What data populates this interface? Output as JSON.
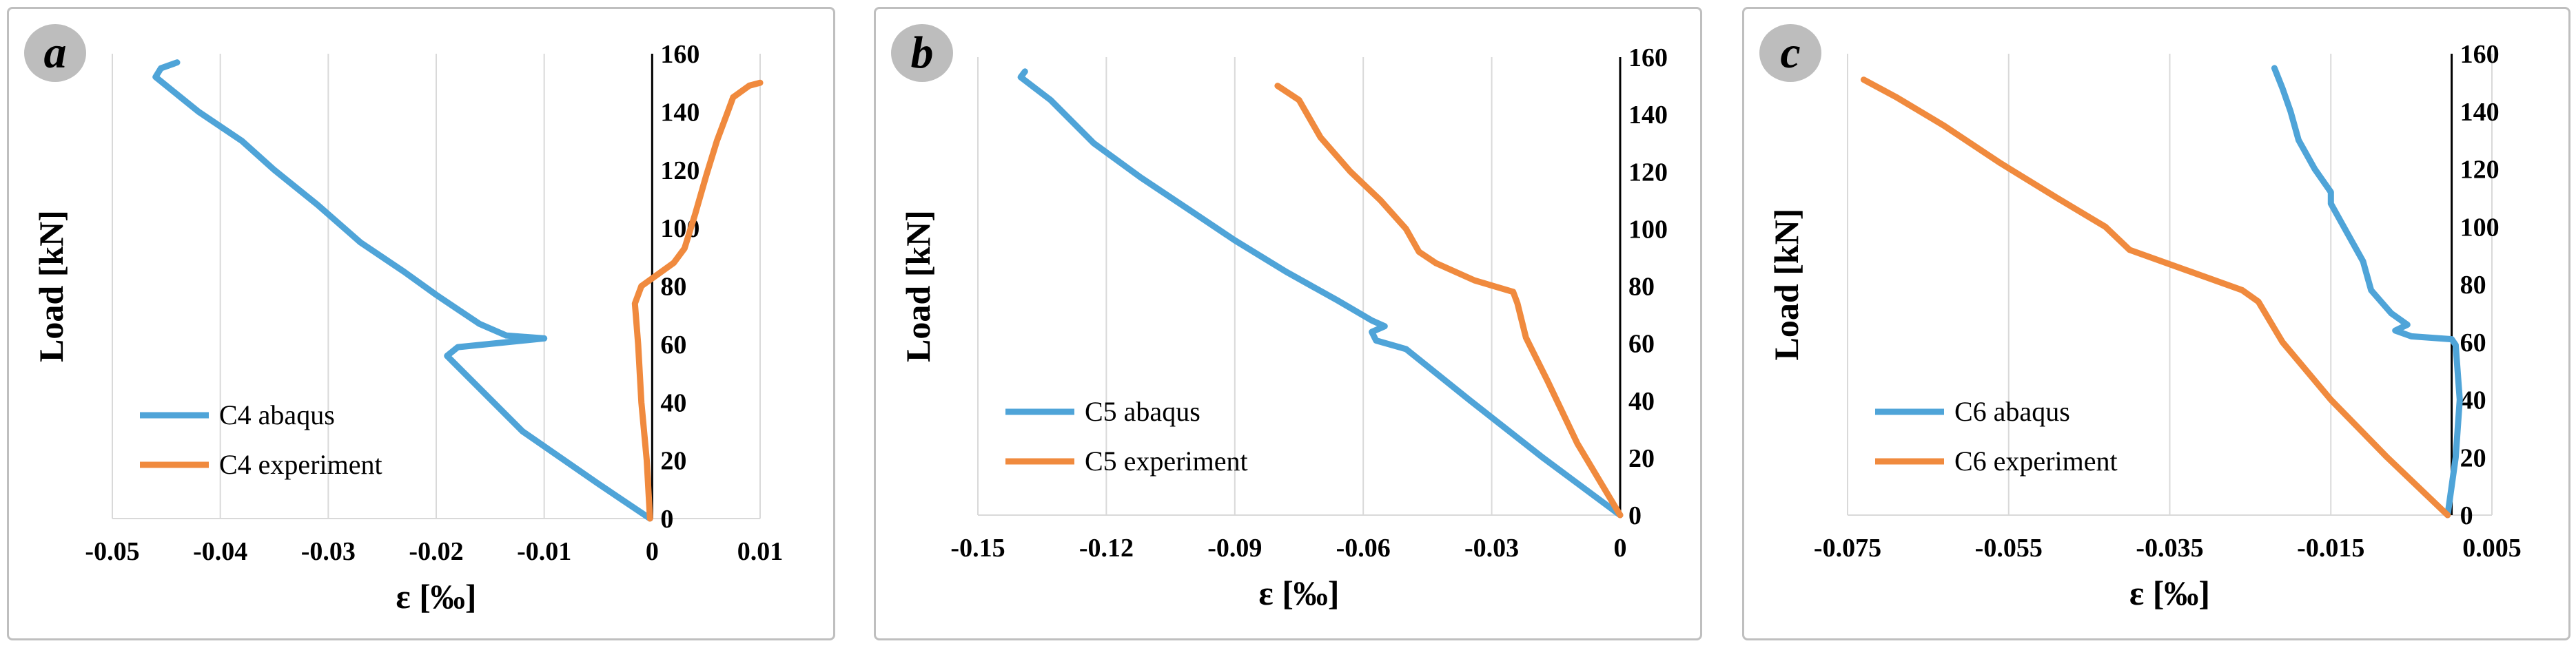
{
  "colors": {
    "abaqus": "#4FA4D8",
    "experiment": "#F08A3E"
  },
  "chart_data": [
    {
      "type": "line",
      "panel_label": "a",
      "ylabel": "Load  [kN]",
      "xlabel": "ε [‰]",
      "xlim": [
        -0.05,
        0.01
      ],
      "ylim": [
        0,
        160
      ],
      "xticks": [
        -0.05,
        -0.04,
        -0.03,
        -0.02,
        -0.01,
        0,
        0.01
      ],
      "xtick_labels": [
        "-0.05",
        "-0.04",
        "-0.03",
        "-0.02",
        "-0.01",
        "0",
        "0.01"
      ],
      "yticks": [
        0,
        20,
        40,
        60,
        80,
        100,
        120,
        140,
        160
      ],
      "ytick_labels": [
        "0",
        "20",
        "40",
        "60",
        "80",
        "100",
        "120",
        "140",
        "160"
      ],
      "legend_position": "bottom-left",
      "series": [
        {
          "name": "C4 abaqus",
          "color_key": "abaqus",
          "points": [
            [
              -0.0002,
              0
            ],
            [
              -0.005,
              12
            ],
            [
              -0.012,
              30
            ],
            [
              -0.019,
              56
            ],
            [
              -0.018,
              59
            ],
            [
              -0.01,
              62
            ],
            [
              -0.0135,
              63
            ],
            [
              -0.016,
              67
            ],
            [
              -0.018,
              72
            ],
            [
              -0.02,
              77
            ],
            [
              -0.023,
              85
            ],
            [
              -0.027,
              95
            ],
            [
              -0.031,
              108
            ],
            [
              -0.035,
              120
            ],
            [
              -0.038,
              130
            ],
            [
              -0.042,
              140
            ],
            [
              -0.046,
              152
            ],
            [
              -0.0455,
              155
            ],
            [
              -0.044,
              157
            ]
          ]
        },
        {
          "name": "C4 experiment",
          "color_key": "experiment",
          "points": [
            [
              -0.0002,
              0
            ],
            [
              -0.0005,
              20
            ],
            [
              -0.001,
              40
            ],
            [
              -0.0013,
              60
            ],
            [
              -0.0016,
              74
            ],
            [
              -0.001,
              80
            ],
            [
              0.0005,
              84
            ],
            [
              0.002,
              88
            ],
            [
              0.003,
              93
            ],
            [
              0.004,
              105
            ],
            [
              0.005,
              118
            ],
            [
              0.006,
              130
            ],
            [
              0.007,
              140
            ],
            [
              0.0075,
              145
            ],
            [
              0.009,
              149
            ],
            [
              0.01,
              150
            ]
          ]
        }
      ]
    },
    {
      "type": "line",
      "panel_label": "b",
      "ylabel": "Load  [kN]",
      "xlabel": "ε [‰]",
      "xlim": [
        -0.15,
        0
      ],
      "ylim": [
        0,
        160
      ],
      "xticks": [
        -0.15,
        -0.12,
        -0.09,
        -0.06,
        -0.03,
        0
      ],
      "xtick_labels": [
        "-0.15",
        "-0.12",
        "-0.09",
        "-0.06",
        "-0.03",
        "0"
      ],
      "yticks": [
        0,
        20,
        40,
        60,
        80,
        100,
        120,
        140,
        160
      ],
      "ytick_labels": [
        "0",
        "20",
        "40",
        "60",
        "80",
        "100",
        "120",
        "140",
        "160"
      ],
      "legend_position": "bottom-left",
      "series": [
        {
          "name": "C5 abaqus",
          "color_key": "abaqus",
          "points": [
            [
              0,
              0
            ],
            [
              -0.018,
              20
            ],
            [
              -0.035,
              40
            ],
            [
              -0.05,
              58
            ],
            [
              -0.057,
              61
            ],
            [
              -0.058,
              64
            ],
            [
              -0.055,
              66
            ],
            [
              -0.058,
              68
            ],
            [
              -0.066,
              75
            ],
            [
              -0.078,
              85
            ],
            [
              -0.09,
              96
            ],
            [
              -0.1,
              106
            ],
            [
              -0.112,
              118
            ],
            [
              -0.123,
              130
            ],
            [
              -0.133,
              145
            ],
            [
              -0.14,
              153
            ],
            [
              -0.139,
              155
            ]
          ]
        },
        {
          "name": "C5 experiment",
          "color_key": "experiment",
          "points": [
            [
              0,
              0
            ],
            [
              -0.01,
              25
            ],
            [
              -0.017,
              47
            ],
            [
              -0.022,
              62
            ],
            [
              -0.024,
              74
            ],
            [
              -0.025,
              78
            ],
            [
              -0.034,
              82
            ],
            [
              -0.043,
              88
            ],
            [
              -0.047,
              92
            ],
            [
              -0.05,
              100
            ],
            [
              -0.056,
              110
            ],
            [
              -0.063,
              120
            ],
            [
              -0.07,
              132
            ],
            [
              -0.075,
              145
            ],
            [
              -0.08,
              150
            ]
          ]
        }
      ]
    },
    {
      "type": "line",
      "panel_label": "c",
      "ylabel": "Load  [kN]",
      "xlabel": "ε [‰]",
      "xlim": [
        -0.075,
        0.005
      ],
      "ylim": [
        0,
        160
      ],
      "xticks": [
        -0.075,
        -0.055,
        -0.035,
        -0.015,
        0.005
      ],
      "xtick_labels": [
        "-0.075",
        "-0.055",
        "-0.035",
        "-0.015",
        "0.005"
      ],
      "yticks": [
        0,
        20,
        40,
        60,
        80,
        100,
        120,
        140,
        160
      ],
      "ytick_labels": [
        "0",
        "20",
        "40",
        "60",
        "80",
        "100",
        "120",
        "140",
        "160"
      ],
      "legend_position": "bottom-left",
      "series": [
        {
          "name": "C6 abaqus",
          "color_key": "abaqus",
          "points": [
            [
              -0.0005,
              0
            ],
            [
              0.0005,
              20
            ],
            [
              0.001,
              40
            ],
            [
              0.0005,
              59
            ],
            [
              0,
              61
            ],
            [
              -0.005,
              62
            ],
            [
              -0.007,
              64
            ],
            [
              -0.0055,
              66
            ],
            [
              -0.0075,
              70
            ],
            [
              -0.01,
              78
            ],
            [
              -0.011,
              88
            ],
            [
              -0.013,
              98
            ],
            [
              -0.015,
              108
            ],
            [
              -0.015,
              112
            ],
            [
              -0.017,
              120
            ],
            [
              -0.019,
              130
            ],
            [
              -0.02,
              140
            ],
            [
              -0.021,
              148
            ],
            [
              -0.022,
              155
            ]
          ]
        },
        {
          "name": "C6 experiment",
          "color_key": "experiment",
          "points": [
            [
              -0.0005,
              0
            ],
            [
              -0.008,
              20
            ],
            [
              -0.015,
              40
            ],
            [
              -0.021,
              60
            ],
            [
              -0.024,
              74
            ],
            [
              -0.026,
              78
            ],
            [
              -0.033,
              85
            ],
            [
              -0.04,
              92
            ],
            [
              -0.043,
              100
            ],
            [
              -0.049,
              110
            ],
            [
              -0.056,
              122
            ],
            [
              -0.063,
              135
            ],
            [
              -0.069,
              145
            ],
            [
              -0.073,
              151
            ]
          ]
        }
      ]
    }
  ]
}
